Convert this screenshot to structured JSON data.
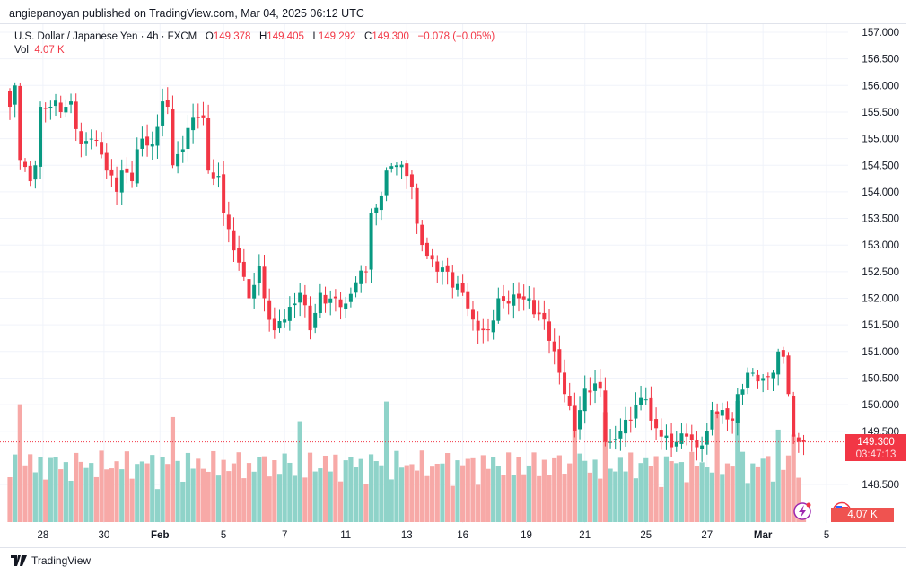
{
  "publisher_line": "angiepanoyan published on TradingView.com, Mar 04, 2025 06:12 UTC",
  "legend": {
    "symbol": "U.S. Dollar / Japanese Yen · 4h · FXCM",
    "o_label": "O",
    "o": "149.378",
    "h_label": "H",
    "h": "149.405",
    "l_label": "L",
    "l": "149.292",
    "c_label": "C",
    "c": "149.300",
    "change": "−0.078 (−0.05%)",
    "vol_label": "Vol",
    "vol": "4.07 K"
  },
  "price_badge": {
    "price": "149.300",
    "countdown": "03:47:13"
  },
  "volume_badge": "4.07 K",
  "footer_brand": "TradingView",
  "colors": {
    "up": "#089981",
    "down": "#f23645",
    "vol_up": "#8fd3c9",
    "vol_down": "#f7a9a7",
    "grid": "#f0f3fa"
  },
  "chart_data": {
    "type": "candlestick",
    "title": "U.S. Dollar / Japanese Yen · 4h · FXCM",
    "y_ticks": [
      "157.000",
      "156.500",
      "156.000",
      "155.500",
      "155.000",
      "154.500",
      "154.000",
      "153.500",
      "153.000",
      "152.500",
      "152.000",
      "151.500",
      "151.000",
      "150.500",
      "150.000",
      "149.500",
      "148.500"
    ],
    "ylim": [
      148.1,
      157.15
    ],
    "candle_count": 157,
    "x_ticks": [
      {
        "label": "28",
        "index": 6.5
      },
      {
        "label": "30",
        "index": 18.5
      },
      {
        "label": "Feb",
        "index": 29.5,
        "bold": true
      },
      {
        "label": "5",
        "index": 42
      },
      {
        "label": "7",
        "index": 54
      },
      {
        "label": "11",
        "index": 66
      },
      {
        "label": "13",
        "index": 78
      },
      {
        "label": "16",
        "index": 89
      },
      {
        "label": "19",
        "index": 101.5
      },
      {
        "label": "21",
        "index": 113
      },
      {
        "label": "25",
        "index": 125
      },
      {
        "label": "27",
        "index": 137
      },
      {
        "label": "Mar",
        "index": 148,
        "bold": true
      },
      {
        "label": "5",
        "index": 160.5
      }
    ],
    "close_anchors": [
      [
        0,
        155.6
      ],
      [
        1,
        156.0
      ],
      [
        2,
        154.6
      ],
      [
        4,
        154.2
      ],
      [
        5,
        154.5
      ],
      [
        6,
        155.6
      ],
      [
        8,
        155.6
      ],
      [
        11,
        155.6
      ],
      [
        12,
        155.7
      ],
      [
        14,
        154.9
      ],
      [
        16,
        155.0
      ],
      [
        18,
        154.7
      ],
      [
        19,
        154.4
      ],
      [
        21,
        154.0
      ],
      [
        22,
        154.4
      ],
      [
        24,
        154.2
      ],
      [
        25,
        154.8
      ],
      [
        26,
        155.0
      ],
      [
        28,
        154.9
      ],
      [
        30,
        155.7
      ],
      [
        31,
        155.6
      ],
      [
        32,
        154.5
      ],
      [
        34,
        154.8
      ],
      [
        35,
        155.2
      ],
      [
        37,
        155.4
      ],
      [
        38,
        155.4
      ],
      [
        39,
        154.4
      ],
      [
        41,
        154.3
      ],
      [
        42,
        153.6
      ],
      [
        43,
        153.3
      ],
      [
        44,
        152.9
      ],
      [
        46,
        152.4
      ],
      [
        47,
        152.0
      ],
      [
        49,
        152.6
      ],
      [
        50,
        152.0
      ],
      [
        52,
        151.4
      ],
      [
        54,
        151.6
      ],
      [
        56,
        151.9
      ],
      [
        57,
        152.1
      ],
      [
        59,
        151.4
      ],
      [
        61,
        152.1
      ],
      [
        62,
        151.9
      ],
      [
        64,
        152.0
      ],
      [
        66,
        151.9
      ],
      [
        68,
        152.3
      ],
      [
        70,
        152.5
      ],
      [
        71,
        153.6
      ],
      [
        72,
        153.7
      ],
      [
        74,
        154.4
      ],
      [
        76,
        154.5
      ],
      [
        78,
        154.3
      ],
      [
        79,
        154.1
      ],
      [
        80,
        153.4
      ],
      [
        82,
        152.8
      ],
      [
        84,
        152.5
      ],
      [
        86,
        152.5
      ],
      [
        87,
        152.2
      ],
      [
        89,
        152.1
      ],
      [
        91,
        151.6
      ],
      [
        93,
        151.4
      ],
      [
        94,
        151.4
      ],
      [
        96,
        152.0
      ],
      [
        98,
        151.9
      ],
      [
        100,
        152.0
      ],
      [
        102,
        152.0
      ],
      [
        103,
        151.7
      ],
      [
        105,
        151.6
      ],
      [
        106,
        151.2
      ],
      [
        108,
        150.6
      ],
      [
        109,
        150.2
      ],
      [
        111,
        149.5
      ],
      [
        113,
        150.3
      ],
      [
        115,
        150.4
      ],
      [
        116,
        150.3
      ],
      [
        117,
        149.3
      ],
      [
        118,
        149.3
      ],
      [
        120,
        149.5
      ],
      [
        122,
        149.7
      ],
      [
        123,
        150.0
      ],
      [
        125,
        150.1
      ],
      [
        126,
        149.7
      ],
      [
        128,
        149.4
      ],
      [
        130,
        149.2
      ],
      [
        131,
        149.3
      ],
      [
        133,
        149.4
      ],
      [
        135,
        149.2
      ],
      [
        137,
        149.5
      ],
      [
        138,
        149.9
      ],
      [
        140,
        149.9
      ],
      [
        142,
        149.7
      ],
      [
        143,
        150.2
      ],
      [
        145,
        150.6
      ],
      [
        146,
        150.6
      ],
      [
        148,
        150.5
      ],
      [
        150,
        150.6
      ],
      [
        151,
        151.0
      ],
      [
        152,
        150.9
      ],
      [
        153,
        150.2
      ],
      [
        154,
        149.4
      ],
      [
        155,
        149.3
      ],
      [
        156,
        149.3
      ]
    ],
    "last_price": 149.3,
    "volume_spikes_index": [
      2,
      32,
      57,
      74,
      111,
      117,
      139,
      143,
      151,
      154
    ],
    "last_volume_k": 4.07
  }
}
